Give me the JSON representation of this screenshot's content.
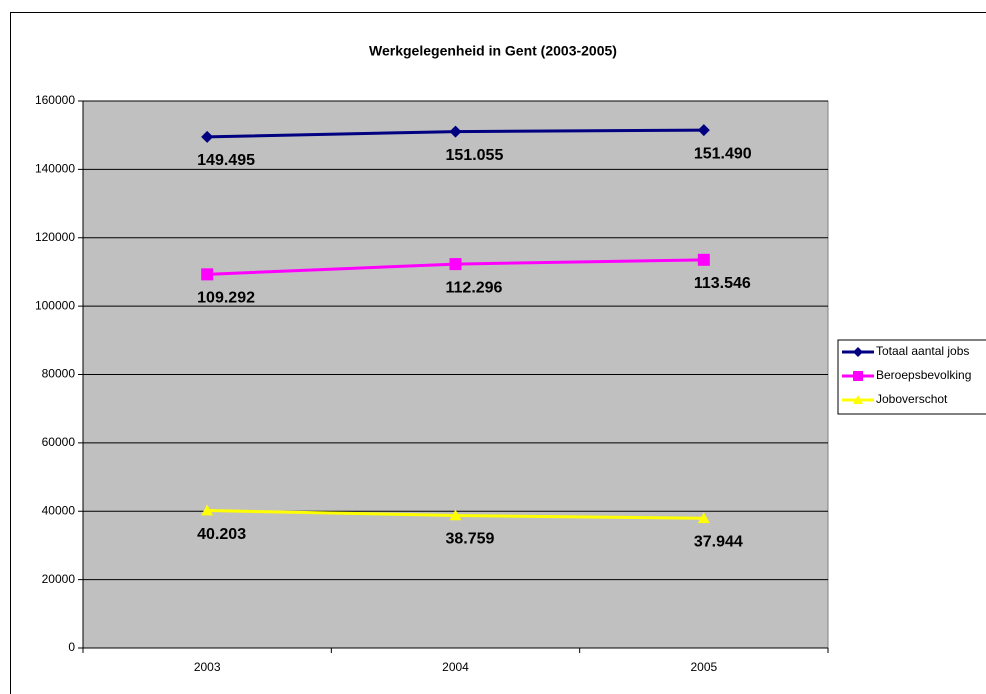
{
  "chart_data": {
    "type": "line",
    "title": "Werkgelegenheid in Gent (2003-2005)",
    "categories": [
      "2003",
      "2004",
      "2005"
    ],
    "series": [
      {
        "name": "Totaal aantal jobs",
        "color": "#000080",
        "marker": "diamond",
        "values": [
          149495,
          151055,
          151490
        ],
        "value_labels": [
          "149.495",
          "151.055",
          "151.490"
        ]
      },
      {
        "name": "Beroepsbevolking",
        "color": "#ff00ff",
        "marker": "square",
        "values": [
          109292,
          112296,
          113546
        ],
        "value_labels": [
          "109.292",
          "112.296",
          "113.546"
        ]
      },
      {
        "name": "Joboverschot",
        "color": "#ffff00",
        "marker": "triangle",
        "values": [
          40203,
          38759,
          37944
        ],
        "value_labels": [
          "40.203",
          "38.759",
          "37.944"
        ]
      }
    ],
    "ylim": [
      0,
      160000
    ],
    "yticks": [
      0,
      20000,
      40000,
      60000,
      80000,
      100000,
      120000,
      140000,
      160000
    ],
    "grid": true,
    "legend": "right"
  }
}
